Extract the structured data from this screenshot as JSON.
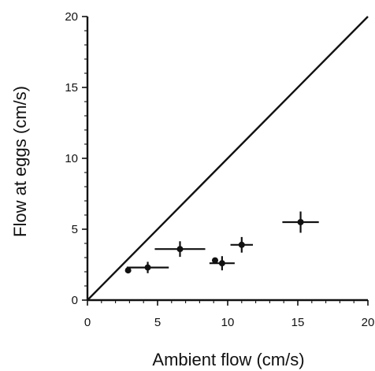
{
  "chart_data": {
    "type": "scatter",
    "title": "",
    "xlabel": "Ambient flow (cm/s)",
    "ylabel": "Flow at eggs (cm/s)",
    "xlim": [
      0,
      20
    ],
    "ylim": [
      0,
      20
    ],
    "xticks": [
      "0",
      "5",
      "10",
      "15",
      "20"
    ],
    "yticks": [
      "0",
      "5",
      "10",
      "15",
      "20"
    ],
    "grid": false,
    "reference_line": {
      "type": "identity",
      "from": [
        0,
        0
      ],
      "to": [
        20,
        20
      ]
    },
    "series": [
      {
        "points": [
          {
            "x": 2.9,
            "y": 2.1,
            "xerr": 0,
            "yerr": 0
          },
          {
            "x": 4.3,
            "y": 2.3,
            "xerr": 1.5,
            "yerr": 0.4
          },
          {
            "x": 6.6,
            "y": 3.6,
            "xerr": 1.8,
            "yerr": 0.55
          },
          {
            "x": 9.1,
            "y": 2.8,
            "xerr": 0,
            "yerr": 0
          },
          {
            "x": 9.6,
            "y": 2.6,
            "xerr": 0.9,
            "yerr": 0.5
          },
          {
            "x": 11.0,
            "y": 3.9,
            "xerr": 0.8,
            "yerr": 0.55
          },
          {
            "x": 15.2,
            "y": 5.5,
            "xerr": 1.3,
            "yerr": 0.75
          }
        ]
      }
    ]
  }
}
